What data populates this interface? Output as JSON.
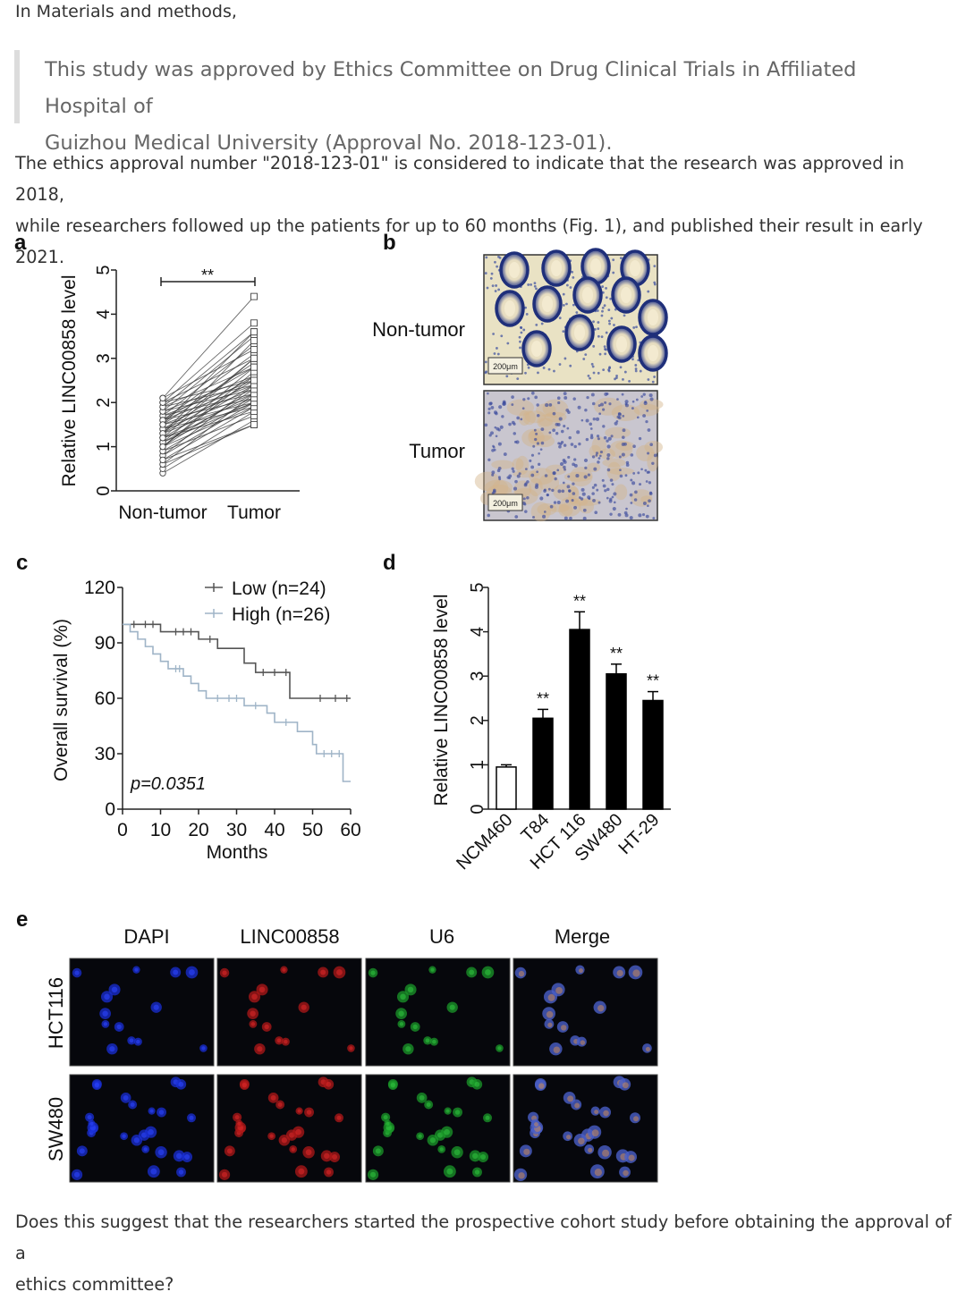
{
  "intro_text": "In Materials and methods,",
  "quote_line1": "This study was approved by Ethics Committee on Drug Clinical Trials in Affiliated Hospital of",
  "quote_line2": "Guizhou Medical University (Approval No. 2018-123-01).",
  "paragraph_line1": "The ethics approval number \"2018-123-01\" is considered to indicate that the research was approved in 2018,",
  "paragraph_line2": "while researchers followed up the patients for up to 60 months (Fig. 1), and published their result in early 2021.",
  "question_line1": "Does this suggest that the researchers started the prospective cohort study before obtaining the approval of a",
  "question_line2": "ethics committee?",
  "figure": {
    "panel_labels": [
      "a",
      "b",
      "c",
      "d",
      "e"
    ],
    "panel_b": {
      "row_labels": [
        "Non-tumor",
        "Tumor"
      ],
      "scale_bar": "200μm"
    },
    "panel_e": {
      "column_labels": [
        "DAPI",
        "LINC00858",
        "U6",
        "Merge"
      ],
      "row_labels": [
        "HCT116",
        "SW480"
      ]
    }
  },
  "chart_data": [
    {
      "panel": "a",
      "type": "scatter",
      "ylabel": "Relative LINC00858 level",
      "categories": [
        "Non-tumor",
        "Tumor"
      ],
      "ylim": [
        0,
        5
      ],
      "yticks": [
        0,
        1,
        2,
        3,
        4,
        5
      ],
      "significance": "**",
      "pairs": [
        [
          0.4,
          1.6
        ],
        [
          0.5,
          1.8
        ],
        [
          0.6,
          2.2
        ],
        [
          0.6,
          1.5
        ],
        [
          0.7,
          1.9
        ],
        [
          0.8,
          2.0
        ],
        [
          0.8,
          2.4
        ],
        [
          0.9,
          1.7
        ],
        [
          0.9,
          2.1
        ],
        [
          1.0,
          2.3
        ],
        [
          1.0,
          1.9
        ],
        [
          1.0,
          2.6
        ],
        [
          1.1,
          2.0
        ],
        [
          1.1,
          2.2
        ],
        [
          1.1,
          2.8
        ],
        [
          1.2,
          1.8
        ],
        [
          1.2,
          2.4
        ],
        [
          1.2,
          2.0
        ],
        [
          1.3,
          2.5
        ],
        [
          1.3,
          2.1
        ],
        [
          1.3,
          3.0
        ],
        [
          1.4,
          2.2
        ],
        [
          1.4,
          2.6
        ],
        [
          1.4,
          1.9
        ],
        [
          1.5,
          2.3
        ],
        [
          1.5,
          2.9
        ],
        [
          1.5,
          2.0
        ],
        [
          1.6,
          2.4
        ],
        [
          1.6,
          3.1
        ],
        [
          1.6,
          2.1
        ],
        [
          1.7,
          2.5
        ],
        [
          1.7,
          3.3
        ],
        [
          1.7,
          2.2
        ],
        [
          1.8,
          2.6
        ],
        [
          1.8,
          3.5
        ],
        [
          1.8,
          2.3
        ],
        [
          1.9,
          2.8
        ],
        [
          1.9,
          3.6
        ],
        [
          1.9,
          2.4
        ],
        [
          2.0,
          3.0
        ],
        [
          2.0,
          3.8
        ],
        [
          2.0,
          2.5
        ],
        [
          2.1,
          3.2
        ],
        [
          2.1,
          4.4
        ],
        [
          1.0,
          2.7
        ],
        [
          1.3,
          3.4
        ],
        [
          1.6,
          2.8
        ],
        [
          0.7,
          1.5
        ],
        [
          1.2,
          3.0
        ],
        [
          1.5,
          3.6
        ]
      ]
    },
    {
      "panel": "c",
      "type": "line",
      "ylabel": "Overall survival (%)",
      "xlabel": "Months",
      "xlim": [
        0,
        60
      ],
      "ylim": [
        0,
        120
      ],
      "xticks": [
        0,
        10,
        20,
        30,
        40,
        50,
        60
      ],
      "yticks": [
        0,
        30,
        60,
        90,
        120
      ],
      "annotation": "p=0.0351",
      "series": [
        {
          "name": "Low (n=24)",
          "color": "#555555",
          "steps": [
            [
              0,
              100
            ],
            [
              10,
              100
            ],
            [
              10,
              96
            ],
            [
              20,
              96
            ],
            [
              20,
              92
            ],
            [
              25,
              92
            ],
            [
              25,
              87
            ],
            [
              32,
              87
            ],
            [
              32,
              79
            ],
            [
              35,
              79
            ],
            [
              35,
              74
            ],
            [
              44,
              74
            ],
            [
              44,
              60
            ],
            [
              60,
              60
            ]
          ],
          "censor": [
            [
              3,
              100
            ],
            [
              6,
              100
            ],
            [
              8,
              100
            ],
            [
              14,
              96
            ],
            [
              16,
              96
            ],
            [
              18,
              96
            ],
            [
              23,
              92
            ],
            [
              37,
              74
            ],
            [
              40,
              74
            ],
            [
              43,
              74
            ],
            [
              52,
              60
            ],
            [
              56,
              60
            ],
            [
              59,
              60
            ]
          ]
        },
        {
          "name": "High (n=26)",
          "color": "#9fb4c7",
          "steps": [
            [
              0,
              100
            ],
            [
              2,
              100
            ],
            [
              2,
              96
            ],
            [
              4,
              96
            ],
            [
              4,
              92
            ],
            [
              6,
              92
            ],
            [
              6,
              88
            ],
            [
              8,
              88
            ],
            [
              8,
              84
            ],
            [
              10,
              84
            ],
            [
              10,
              80
            ],
            [
              12,
              80
            ],
            [
              12,
              76
            ],
            [
              16,
              76
            ],
            [
              16,
              72
            ],
            [
              18,
              72
            ],
            [
              18,
              68
            ],
            [
              20,
              68
            ],
            [
              20,
              64
            ],
            [
              22,
              64
            ],
            [
              22,
              60
            ],
            [
              32,
              60
            ],
            [
              32,
              56
            ],
            [
              38,
              56
            ],
            [
              38,
              52
            ],
            [
              40,
              52
            ],
            [
              40,
              47
            ],
            [
              46,
              47
            ],
            [
              46,
              42
            ],
            [
              50,
              42
            ],
            [
              50,
              35
            ],
            [
              50,
              35
            ],
            [
              51,
              35
            ],
            [
              51,
              30
            ],
            [
              58,
              30
            ],
            [
              58,
              15
            ],
            [
              60,
              15
            ]
          ],
          "censor": [
            [
              14,
              76
            ],
            [
              15,
              76
            ],
            [
              25,
              60
            ],
            [
              28,
              60
            ],
            [
              30,
              60
            ],
            [
              35,
              56
            ],
            [
              43,
              47
            ],
            [
              53,
              30
            ],
            [
              55,
              30
            ],
            [
              57,
              30
            ]
          ]
        }
      ]
    },
    {
      "panel": "d",
      "type": "bar",
      "ylabel": "Relative LINC00858 level",
      "categories": [
        "NCM460",
        "T84",
        "HCT 116",
        "SW480",
        "HT-29"
      ],
      "values": [
        0.95,
        2.05,
        4.05,
        3.05,
        2.45
      ],
      "errors": [
        0.05,
        0.2,
        0.4,
        0.22,
        0.2
      ],
      "significance": [
        "",
        "**",
        "**",
        "**",
        "**"
      ],
      "ylim": [
        0,
        5
      ],
      "yticks": [
        0,
        1,
        2,
        3,
        4,
        5
      ]
    }
  ]
}
